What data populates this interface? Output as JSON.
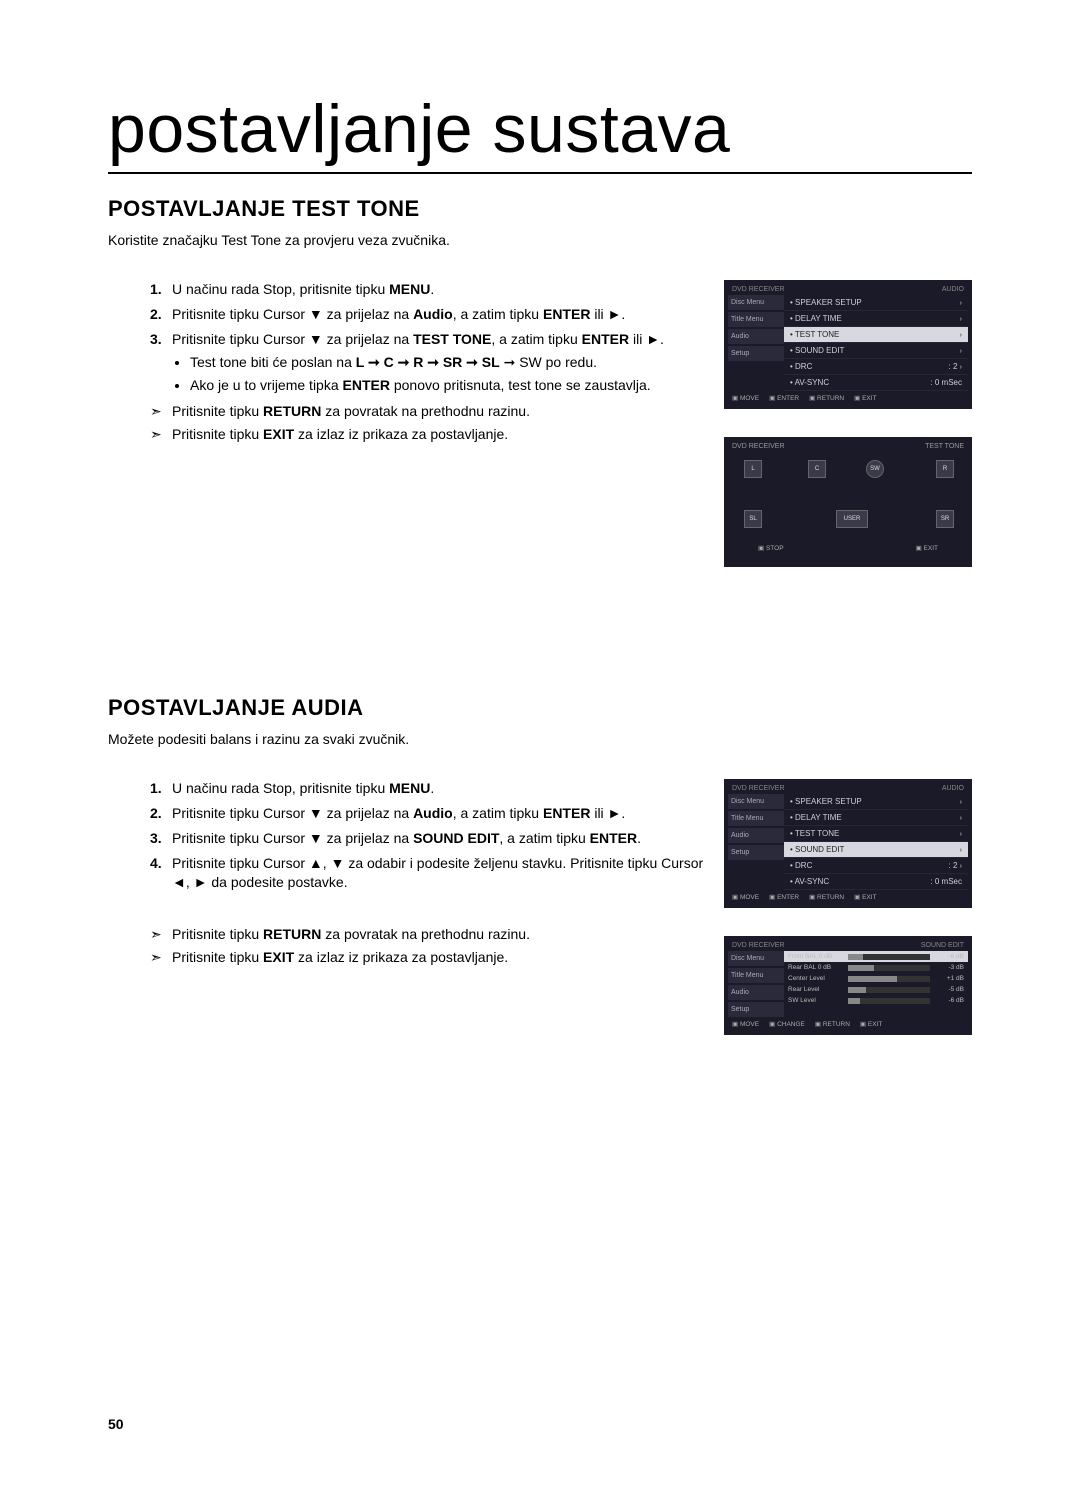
{
  "page_title": "postavljanje sustava",
  "page_number": "50",
  "section1": {
    "heading": "POSTAVLJANJE TEST TONE",
    "intro": "Koristite značajku Test Tone za provjeru veza zvučnika.",
    "step1_pre": "U načinu rada Stop, pritisnite tipku ",
    "step1_bold": "MENU",
    "step1_post": ".",
    "step2_a": "Pritisnite tipku Cursor ▼ za prijelaz na ",
    "step2_b": "Audio",
    "step2_c": ", a zatim tipku ",
    "step2_d": "ENTER",
    "step2_e": " ili ►.",
    "step3_a": "Pritisnite tipku Cursor ▼ za prijelaz na ",
    "step3_b": "TEST TONE",
    "step3_c": ", a zatim tipku ",
    "step3_d": "ENTER",
    "step3_e": " ili ►.",
    "bullet1_a": "Test tone biti će poslan na ",
    "bullet1_b": "L ➞ C ➞ R ➞ SR ➞ SL",
    "bullet1_c": " ➞ SW po redu.",
    "bullet2_a": "Ako je u to vrijeme tipka ",
    "bullet2_b": "ENTER",
    "bullet2_c": " ponovo pritisnuta, test tone se zaustavlja.",
    "arrow1_a": "Pritisnite tipku ",
    "arrow1_b": "RETURN",
    "arrow1_c": " za povratak na prethodnu razinu.",
    "arrow2_a": "Pritisnite tipku ",
    "arrow2_b": "EXIT",
    "arrow2_c": " za izlaz iz prikaza za postavljanje."
  },
  "section2": {
    "heading": "POSTAVLJANJE AUDIA",
    "intro": "Možete podesiti balans i razinu za svaki zvučnik.",
    "step1_pre": "U načinu rada Stop, pritisnite tipku ",
    "step1_bold": "MENU",
    "step1_post": ".",
    "step2_a": "Pritisnite tipku Cursor ▼ za prijelaz na ",
    "step2_b": "Audio",
    "step2_c": ", a zatim tipku ",
    "step2_d": "ENTER",
    "step2_e": " ili ►.",
    "step3_a": "Pritisnite tipku Cursor ▼ za prijelaz na ",
    "step3_b": "SOUND EDIT",
    "step3_c": ", a zatim tipku ",
    "step3_d": "ENTER",
    "step3_e": ".",
    "step4": "Pritisnite tipku Cursor ▲, ▼ za odabir i podesite željenu stavku. Pritisnite tipku Cursor ◄, ► da podesite postavke.",
    "arrow1_a": "Pritisnite tipku ",
    "arrow1_b": "RETURN",
    "arrow1_c": " za povratak na prethodnu razinu.",
    "arrow2_a": "Pritisnite tipku ",
    "arrow2_b": "EXIT",
    "arrow2_c": " za izlaz iz prikaza za postavljanje."
  },
  "osd_audio_menu": {
    "title_left": "DVD RECEIVER",
    "title_right": "AUDIO",
    "side": [
      "Disc Menu",
      "Title Menu",
      "Audio",
      "Setup"
    ],
    "rows": [
      {
        "label": "SPEAKER SETUP",
        "val": "",
        "chev": "›"
      },
      {
        "label": "DELAY TIME",
        "val": "",
        "chev": "›"
      },
      {
        "label": "TEST TONE",
        "val": "",
        "chev": "›",
        "sel": true
      },
      {
        "label": "SOUND EDIT",
        "val": "",
        "chev": "›"
      },
      {
        "label": "DRC",
        "val": ": 2",
        "chev": "›"
      },
      {
        "label": "AV-SYNC",
        "val": ": 0 mSec",
        "chev": ""
      }
    ],
    "foot": [
      "MOVE",
      "ENTER",
      "RETURN",
      "EXIT"
    ]
  },
  "osd_testtone": {
    "title_left": "DVD RECEIVER",
    "title_right": "TEST TONE",
    "speakers": [
      "L",
      "C",
      "SW",
      "R",
      "SL",
      "USER",
      "SR"
    ],
    "foot": [
      "STOP",
      "EXIT"
    ]
  },
  "osd_audio_menu2": {
    "title_left": "DVD RECEIVER",
    "title_right": "AUDIO",
    "side": [
      "Disc Menu",
      "Title Menu",
      "Audio",
      "Setup"
    ],
    "rows": [
      {
        "label": "SPEAKER SETUP",
        "val": "",
        "chev": "›"
      },
      {
        "label": "DELAY TIME",
        "val": "",
        "chev": "›"
      },
      {
        "label": "TEST TONE",
        "val": "",
        "chev": "›"
      },
      {
        "label": "SOUND EDIT",
        "val": "",
        "chev": "›",
        "sel": true
      },
      {
        "label": "DRC",
        "val": ": 2",
        "chev": "›"
      },
      {
        "label": "AV-SYNC",
        "val": ": 0 mSec",
        "chev": ""
      }
    ],
    "foot": [
      "MOVE",
      "ENTER",
      "RETURN",
      "EXIT"
    ]
  },
  "osd_soundedit": {
    "title_left": "DVD RECEIVER",
    "title_right": "SOUND EDIT",
    "side": [
      "Disc Menu",
      "Title Menu",
      "Audio",
      "Setup"
    ],
    "sliders": [
      {
        "lbl": "Front BAL",
        "mid": "0 dB",
        "val": "-6 dB",
        "fill": 18,
        "sel": true
      },
      {
        "lbl": "Rear BAL",
        "mid": "0 dB",
        "val": "-3 dB",
        "fill": 32
      },
      {
        "lbl": "Center Level",
        "mid": "",
        "val": "+1 dB",
        "fill": 60
      },
      {
        "lbl": "Rear Level",
        "mid": "",
        "val": "-5 dB",
        "fill": 22
      },
      {
        "lbl": "SW Level",
        "mid": "",
        "val": "-6 dB",
        "fill": 15
      }
    ],
    "foot": [
      "MOVE",
      "CHANGE",
      "RETURN",
      "EXIT"
    ]
  }
}
